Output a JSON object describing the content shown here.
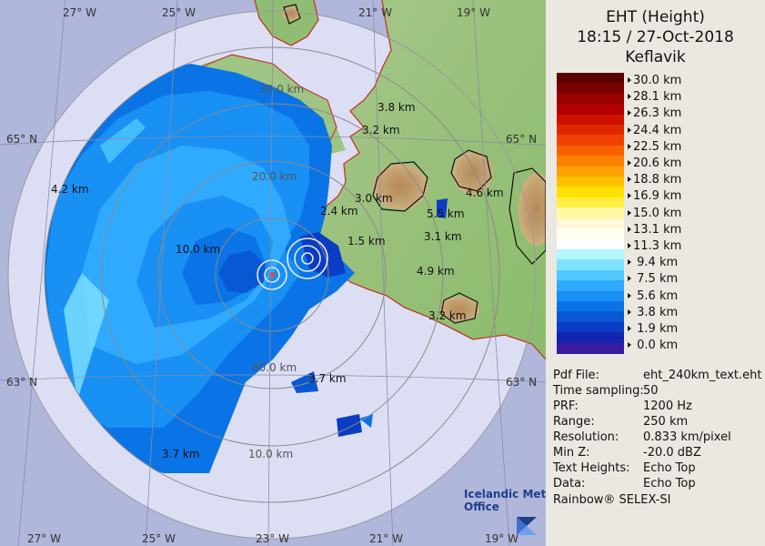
{
  "header": {
    "title": "EHT (Height)",
    "datetime": "18:15 / 27-Oct-2018",
    "station": "Keflavik"
  },
  "legend": {
    "labels": [
      "30.0 km",
      "28.1 km",
      "26.3 km",
      "24.4 km",
      "22.5 km",
      "20.6 km",
      "18.8 km",
      "16.9 km",
      "15.0 km",
      "13.1 km",
      "11.3 km",
      " 9.4 km",
      " 7.5 km",
      " 5.6 km",
      " 3.8 km",
      " 1.9 km",
      " 0.0 km"
    ],
    "colors": [
      "#5c0000",
      "#7a0000",
      "#990000",
      "#b30000",
      "#cc1100",
      "#e02800",
      "#f04000",
      "#f86000",
      "#fc8000",
      "#fea000",
      "#ffc000",
      "#ffe000",
      "#fff040",
      "#fff8a0",
      "#fff8d8",
      "#fffff0",
      "#ffffff",
      "#b4f6ff",
      "#80e2ff",
      "#50c8ff",
      "#30aaff",
      "#1890f4",
      "#0a74e6",
      "#0858d4",
      "#0a3cc4",
      "#1424b0",
      "#3a1ca0"
    ]
  },
  "info": [
    {
      "key": "Pdf File:",
      "value": "eht_240km_text.eht"
    },
    {
      "key": "Time sampling:",
      "value": "50"
    },
    {
      "key": "PRF:",
      "value": "1200 Hz"
    },
    {
      "key": "Range:",
      "value": "250 km"
    },
    {
      "key": "Resolution:",
      "value": "0.833 km/pixel"
    },
    {
      "key": "Min Z:",
      "value": "-20.0 dBZ"
    },
    {
      "key": "Text Heights:",
      "value": "Echo Top"
    },
    {
      "key": "Data:",
      "value": "Echo Top"
    }
  ],
  "footer": {
    "software": "Rainbow® SELEX-SI"
  },
  "logo": {
    "line1": "Icelandic Met",
    "line2": "Office"
  },
  "map": {
    "lat_labels": [
      "65° N",
      "65° N",
      "63° N",
      "63° N"
    ],
    "lon_labels_top": [
      "27° W",
      "25° W",
      "21° W",
      "19° W"
    ],
    "lon_labels_bottom": [
      "27° W",
      "25° W",
      "23° W",
      "21° W",
      "19° W"
    ],
    "range_labels": [
      "30.0 km",
      "20.0 km",
      "80.0 km",
      "10.0 km"
    ],
    "echo_tops": [
      "3.8 km",
      "3.2 km",
      "4.2 km",
      "3.0 km",
      "2.4 km",
      "5.5 km",
      "4.6 km",
      "1.5 km",
      "3.1 km",
      "10.0 km",
      "4.9 km",
      "3.2 km",
      "3.7 km",
      "3.7 km"
    ]
  }
}
